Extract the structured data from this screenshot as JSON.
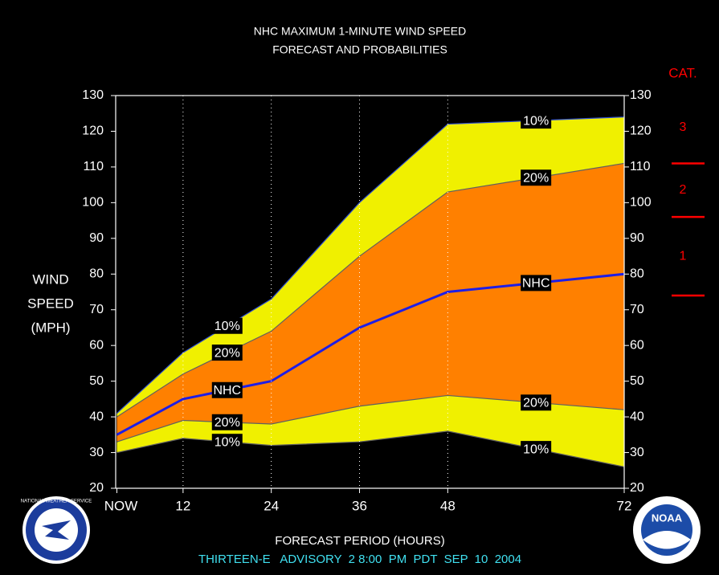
{
  "chart_data": {
    "type": "area",
    "title": [
      "NHC MAXIMUM 1-MINUTE WIND SPEED",
      "FORECAST AND PROBABILITIES"
    ],
    "y_label": [
      "WIND",
      "SPEED",
      "(MPH)"
    ],
    "x_label": "FORECAST PERIOD (HOURS)",
    "footer": "THIRTEEN-E   ADVISORY  2 8:00  PM  PDT  SEP  10  2004",
    "x": [
      3,
      12,
      24,
      36,
      48,
      72
    ],
    "xlim": [
      3,
      72
    ],
    "xticks": [
      {
        "value": 3,
        "label": "NOW"
      },
      12,
      24,
      36,
      48,
      72
    ],
    "ylim": [
      20,
      130
    ],
    "yticks": [
      20,
      30,
      40,
      50,
      60,
      70,
      80,
      90,
      100,
      110,
      120,
      130
    ],
    "grid": true,
    "series": [
      {
        "name": "10%",
        "color": "#f0f000",
        "upper": [
          41,
          58,
          73,
          100,
          122,
          124
        ],
        "lower": [
          30,
          34,
          32,
          33,
          36,
          26
        ]
      },
      {
        "name": "20%",
        "color": "#ff8000",
        "upper": [
          40,
          52,
          64,
          85,
          103,
          111
        ],
        "lower": [
          33,
          39,
          38,
          43,
          46,
          42
        ]
      },
      {
        "name": "NHC",
        "color": "#1e1ee6",
        "values": [
          35,
          45,
          50,
          65,
          75,
          80
        ]
      }
    ],
    "category_scale": {
      "title": "CAT.",
      "color": "#ff0000",
      "thresholds": [
        74,
        96,
        111
      ],
      "labels": [
        "1",
        "2",
        "3"
      ]
    },
    "logos": [
      "NATIONAL WEATHER SERVICE",
      "NOAA"
    ]
  }
}
